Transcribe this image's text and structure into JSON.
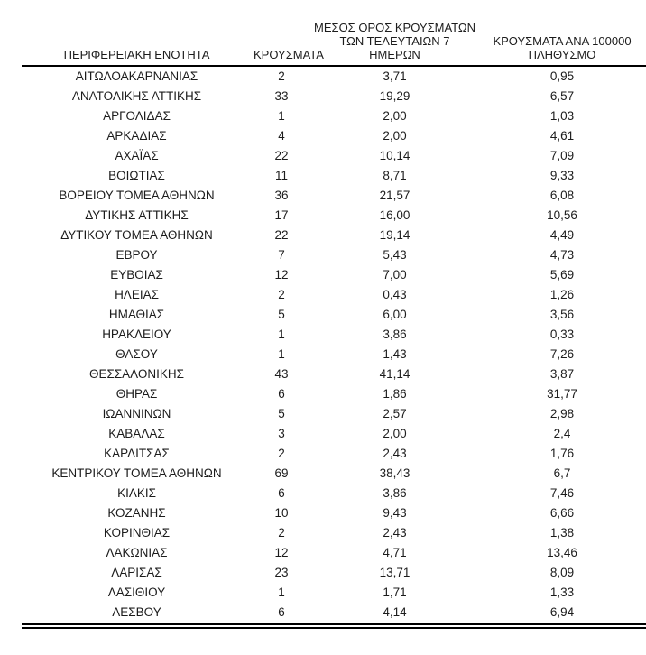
{
  "table": {
    "columns": [
      {
        "id": "region",
        "label": "ΠΕΡΙΦΕΡΕΙΑΚΗ ΕΝΟΤΗΤΑ"
      },
      {
        "id": "cases",
        "label": "ΚΡΟΥΣΜΑΤΑ"
      },
      {
        "id": "avg7",
        "label": "ΜΕΣΟΣ ΟΡΟΣ ΚΡΟΥΣΜΑΤΩΝ\nΤΩΝ ΤΕΛΕΥΤΑΙΩΝ 7\nΗΜΕΡΩΝ"
      },
      {
        "id": "per100k",
        "label": "ΚΡΟΥΣΜΑΤΑ ΑΝΑ 100000\nΠΛΗΘΥΣΜΟ"
      }
    ],
    "rows": [
      [
        "ΑΙΤΩΛΟΑΚΑΡΝΑΝΙΑΣ",
        "2",
        "3,71",
        "0,95"
      ],
      [
        "ΑΝΑΤΟΛΙΚΗΣ ΑΤΤΙΚΗΣ",
        "33",
        "19,29",
        "6,57"
      ],
      [
        "ΑΡΓΟΛΙΔΑΣ",
        "1",
        "2,00",
        "1,03"
      ],
      [
        "ΑΡΚΑΔΙΑΣ",
        "4",
        "2,00",
        "4,61"
      ],
      [
        "ΑΧΑΪΑΣ",
        "22",
        "10,14",
        "7,09"
      ],
      [
        "ΒΟΙΩΤΙΑΣ",
        "11",
        "8,71",
        "9,33"
      ],
      [
        "ΒΟΡΕΙΟΥ ΤΟΜΕΑ ΑΘΗΝΩΝ",
        "36",
        "21,57",
        "6,08"
      ],
      [
        "ΔΥΤΙΚΗΣ ΑΤΤΙΚΗΣ",
        "17",
        "16,00",
        "10,56"
      ],
      [
        "ΔΥΤΙΚΟΥ ΤΟΜΕΑ ΑΘΗΝΩΝ",
        "22",
        "19,14",
        "4,49"
      ],
      [
        "ΕΒΡΟΥ",
        "7",
        "5,43",
        "4,73"
      ],
      [
        "ΕΥΒΟΙΑΣ",
        "12",
        "7,00",
        "5,69"
      ],
      [
        "ΗΛΕΙΑΣ",
        "2",
        "0,43",
        "1,26"
      ],
      [
        "ΗΜΑΘΙΑΣ",
        "5",
        "6,00",
        "3,56"
      ],
      [
        "ΗΡΑΚΛΕΙΟΥ",
        "1",
        "3,86",
        "0,33"
      ],
      [
        "ΘΑΣΟΥ",
        "1",
        "1,43",
        "7,26"
      ],
      [
        "ΘΕΣΣΑΛΟΝΙΚΗΣ",
        "43",
        "41,14",
        "3,87"
      ],
      [
        "ΘΗΡΑΣ",
        "6",
        "1,86",
        "31,77"
      ],
      [
        "ΙΩΑΝΝΙΝΩΝ",
        "5",
        "2,57",
        "2,98"
      ],
      [
        "ΚΑΒΑΛΑΣ",
        "3",
        "2,00",
        "2,4"
      ],
      [
        "ΚΑΡΔΙΤΣΑΣ",
        "2",
        "2,43",
        "1,76"
      ],
      [
        "ΚΕΝΤΡΙΚΟΥ ΤΟΜΕΑ ΑΘΗΝΩΝ",
        "69",
        "38,43",
        "6,7"
      ],
      [
        "ΚΙΛΚΙΣ",
        "6",
        "3,86",
        "7,46"
      ],
      [
        "ΚΟΖΑΝΗΣ",
        "10",
        "9,43",
        "6,66"
      ],
      [
        "ΚΟΡΙΝΘΙΑΣ",
        "2",
        "2,43",
        "1,38"
      ],
      [
        "ΛΑΚΩΝΙΑΣ",
        "12",
        "4,71",
        "13,46"
      ],
      [
        "ΛΑΡΙΣΑΣ",
        "23",
        "13,71",
        "8,09"
      ],
      [
        "ΛΑΣΙΘΙΟΥ",
        "1",
        "1,71",
        "1,33"
      ],
      [
        "ΛΕΣΒΟΥ",
        "6",
        "4,14",
        "6,94"
      ]
    ],
    "rules": {
      "header_rule_color": "#000000",
      "bottom_rule_style": "double",
      "bottom_rule_color": "#000000"
    },
    "text_color": "#1c1c1c",
    "background_color": "#ffffff"
  }
}
